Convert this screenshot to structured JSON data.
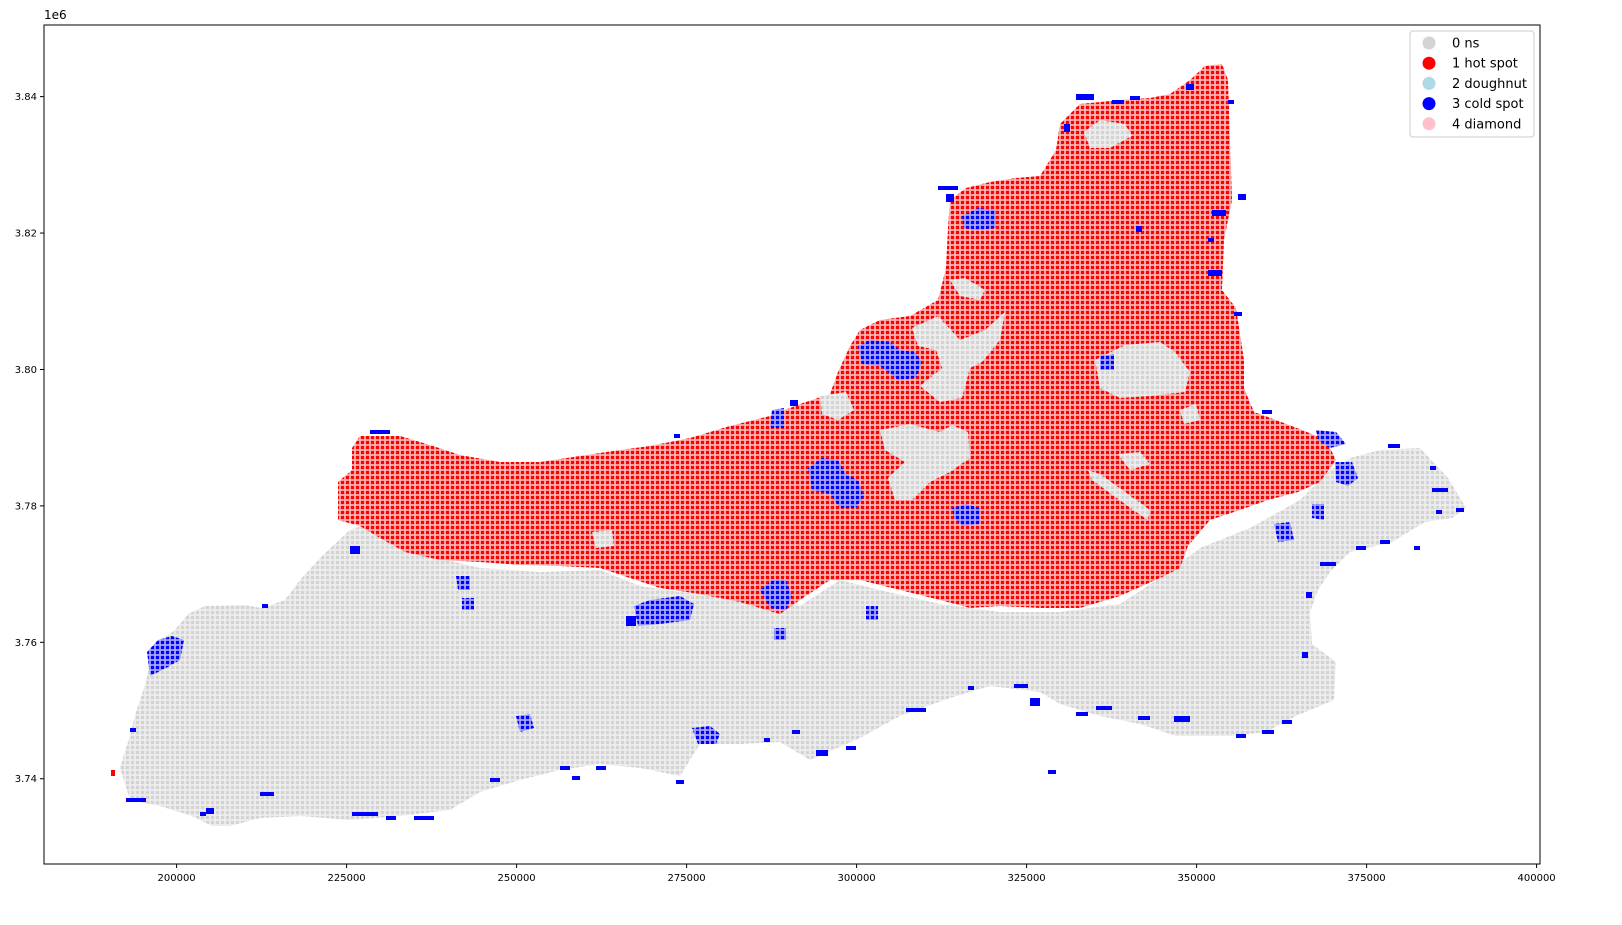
{
  "map": {
    "y_offset_text": "1e6",
    "x_ticks": [
      {
        "value": 200000,
        "label": "200000"
      },
      {
        "value": 225000,
        "label": "225000"
      },
      {
        "value": 250000,
        "label": "250000"
      },
      {
        "value": 275000,
        "label": "275000"
      },
      {
        "value": 300000,
        "label": "300000"
      },
      {
        "value": 325000,
        "label": "325000"
      },
      {
        "value": 350000,
        "label": "350000"
      },
      {
        "value": 375000,
        "label": "375000"
      },
      {
        "value": 400000,
        "label": "400000"
      }
    ],
    "y_ticks": [
      {
        "value": 3.74,
        "label": "3.74"
      },
      {
        "value": 3.76,
        "label": "3.76"
      },
      {
        "value": 3.78,
        "label": "3.78"
      },
      {
        "value": 3.8,
        "label": "3.80"
      },
      {
        "value": 3.82,
        "label": "3.82"
      },
      {
        "value": 3.84,
        "label": "3.84"
      }
    ],
    "xlim": [
      180500,
      400500
    ],
    "ylim": [
      3.7275,
      3.8505
    ],
    "legend": [
      {
        "label": "0 ns",
        "color": "#d3d3d3"
      },
      {
        "label": "1 hot spot",
        "color": "#ff0000"
      },
      {
        "label": "2 doughnut",
        "color": "#add8e6"
      },
      {
        "label": "3 cold spot",
        "color": "#0000ff"
      },
      {
        "label": "4 diamond",
        "color": "#ffc0cb"
      }
    ],
    "legend_position": "top-right",
    "grid": false
  }
}
